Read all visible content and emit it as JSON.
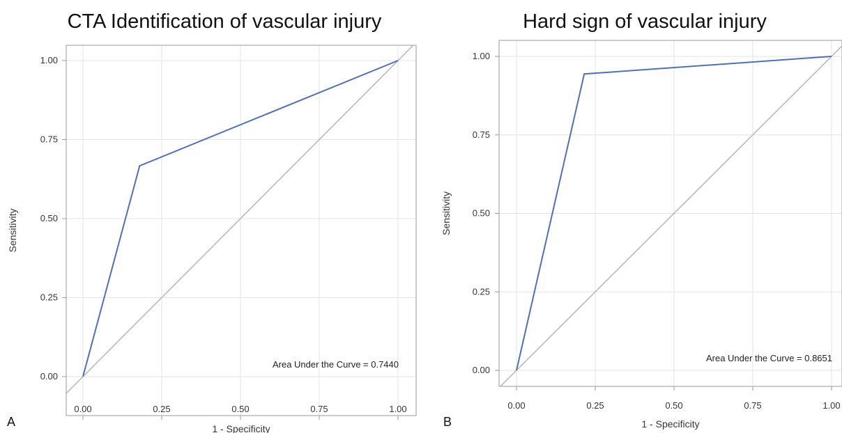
{
  "chart_data": [
    {
      "type": "line",
      "panel_label": "A",
      "title": "CTA Identification of vascular injury",
      "xlabel": "1 - Specificity",
      "ylabel": "Sensitivity",
      "xlim": [
        0,
        1
      ],
      "ylim": [
        0,
        1
      ],
      "x_ticks": [
        "0.00",
        "0.25",
        "0.50",
        "0.75",
        "1.00"
      ],
      "y_ticks": [
        "0.00",
        "0.25",
        "0.50",
        "0.75",
        "1.00"
      ],
      "grid": true,
      "series": [
        {
          "x": [
            0,
            0.18,
            1
          ],
          "y": [
            0,
            0.667,
            1
          ],
          "color": "#4f6fb8"
        },
        {
          "x": [
            0,
            1
          ],
          "y": [
            0,
            1
          ],
          "color": "#b9b9b9"
        }
      ],
      "annotation": "Area Under the Curve = 0.7440"
    },
    {
      "type": "line",
      "panel_label": "B",
      "title": "Hard sign of vascular injury",
      "xlabel": "1 - Specificity",
      "ylabel": "Sensitivity",
      "xlim": [
        0,
        1
      ],
      "ylim": [
        0,
        1
      ],
      "x_ticks": [
        "0.00",
        "0.25",
        "0.50",
        "0.75",
        "1.00"
      ],
      "y_ticks": [
        "0.00",
        "0.25",
        "0.50",
        "0.75",
        "1.00"
      ],
      "grid": true,
      "series": [
        {
          "x": [
            0,
            0.215,
            1
          ],
          "y": [
            0,
            0.944,
            1
          ],
          "color": "#4f6fb8"
        },
        {
          "x": [
            0,
            1
          ],
          "y": [
            0,
            1
          ],
          "color": "#b9b9b9"
        }
      ],
      "annotation": "Area Under the Curve = 0.8651"
    }
  ]
}
